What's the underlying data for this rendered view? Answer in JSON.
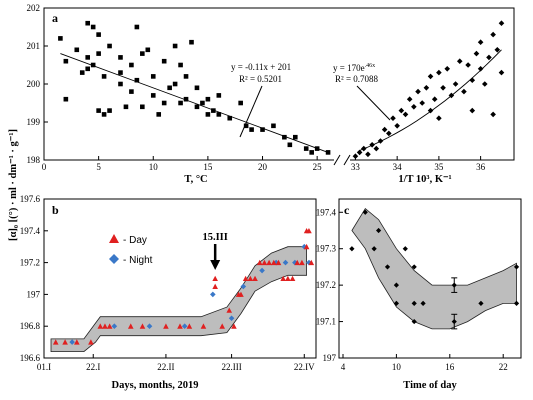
{
  "chart_data": [
    {
      "type": "scatter",
      "letter": "a",
      "xlabel_left": "T, °C",
      "xlabel_right": "1/T 10³, K⁻¹",
      "ylim": [
        198,
        202
      ],
      "y_ticks": [
        "198",
        "199",
        "200",
        "201",
        "202"
      ],
      "left_x_ticks": [
        "0",
        "5",
        "10",
        "15",
        "20",
        "25"
      ],
      "left_xlim": [
        0,
        27
      ],
      "right_x_ticks": [
        "33",
        "34",
        "35",
        "36"
      ],
      "right_xlim": [
        32.75,
        36.8
      ],
      "left_fit": {
        "equation": "y = -0.11x + 201",
        "r2": "R² = 0.5201",
        "x0": 1.5,
        "y0": 200.8,
        "x1": 26,
        "y1": 198.2
      },
      "right_fit": {
        "equation": "y = 170e^(.46x)",
        "eq_main": "y = 170e",
        "eq_sup": ".46x",
        "r2": "R² = 0.7088",
        "x0": 33.1,
        "y0": 198.25,
        "x1": 36.5,
        "y1": 200.9
      },
      "left_points": [
        [
          1.5,
          201.2
        ],
        [
          2,
          200.6
        ],
        [
          2,
          199.6
        ],
        [
          3,
          200.9
        ],
        [
          3.5,
          200.3
        ],
        [
          4,
          201.6
        ],
        [
          4,
          200.7
        ],
        [
          4,
          200.4
        ],
        [
          4.5,
          201.5
        ],
        [
          4.5,
          200.5
        ],
        [
          5,
          201.3
        ],
        [
          5,
          200.8
        ],
        [
          5,
          199.3
        ],
        [
          5.5,
          200.2
        ],
        [
          5.5,
          199.2
        ],
        [
          6,
          199.3
        ],
        [
          6,
          201
        ],
        [
          7,
          200.7
        ],
        [
          7,
          200.3
        ],
        [
          7,
          200
        ],
        [
          7.5,
          199.4
        ],
        [
          8,
          200.5
        ],
        [
          8,
          199.8
        ],
        [
          8.5,
          201.5
        ],
        [
          8.5,
          200.1
        ],
        [
          9,
          199.4
        ],
        [
          9,
          200.8
        ],
        [
          9.5,
          200.9
        ],
        [
          10,
          199.7
        ],
        [
          10,
          200.2
        ],
        [
          10.5,
          199.2
        ],
        [
          11,
          200.6
        ],
        [
          11,
          199.5
        ],
        [
          11.5,
          199.9
        ],
        [
          12,
          201
        ],
        [
          12,
          200
        ],
        [
          12.5,
          199.5
        ],
        [
          12.5,
          200.5
        ],
        [
          13,
          200.2
        ],
        [
          13,
          199.6
        ],
        [
          13.5,
          201.1
        ],
        [
          14,
          199.4
        ],
        [
          14,
          199.9
        ],
        [
          14.5,
          199.5
        ],
        [
          15,
          199.2
        ],
        [
          15,
          199.6
        ],
        [
          15.5,
          199.3
        ],
        [
          16,
          199.7
        ],
        [
          16,
          199.2
        ],
        [
          17,
          199.1
        ],
        [
          18,
          199.5
        ],
        [
          18.5,
          198.9
        ],
        [
          19,
          198.8
        ],
        [
          20,
          198.8
        ],
        [
          21,
          198.9
        ],
        [
          22,
          198.6
        ],
        [
          22.5,
          198.4
        ],
        [
          23,
          198.6
        ],
        [
          24,
          198.3
        ],
        [
          24.5,
          198.2
        ],
        [
          25,
          198.3
        ],
        [
          26,
          198.2
        ]
      ],
      "right_points": [
        [
          33,
          198.1
        ],
        [
          33.1,
          198.2
        ],
        [
          33.2,
          198.3
        ],
        [
          33.3,
          198.15
        ],
        [
          33.4,
          198.4
        ],
        [
          33.5,
          198.3
        ],
        [
          33.6,
          198.5
        ],
        [
          33.7,
          198.8
        ],
        [
          33.8,
          198.7
        ],
        [
          33.9,
          199.1
        ],
        [
          34,
          198.9
        ],
        [
          34.1,
          199.3
        ],
        [
          34.2,
          199.2
        ],
        [
          34.3,
          199.6
        ],
        [
          34.4,
          199.4
        ],
        [
          34.5,
          199.8
        ],
        [
          34.6,
          199.5
        ],
        [
          34.7,
          199.9
        ],
        [
          34.8,
          199.3
        ],
        [
          34.8,
          200.2
        ],
        [
          34.9,
          199.6
        ],
        [
          35,
          200.3
        ],
        [
          35,
          199.1
        ],
        [
          35.1,
          199.9
        ],
        [
          35.2,
          200.4
        ],
        [
          35.3,
          199.7
        ],
        [
          35.4,
          200
        ],
        [
          35.5,
          200.6
        ],
        [
          35.6,
          199.8
        ],
        [
          35.7,
          200.5
        ],
        [
          35.8,
          200.1
        ],
        [
          35.8,
          199.3
        ],
        [
          35.9,
          200.8
        ],
        [
          36,
          200.4
        ],
        [
          36,
          201.1
        ],
        [
          36.1,
          200
        ],
        [
          36.2,
          200.7
        ],
        [
          36.3,
          201.3
        ],
        [
          36.3,
          199.2
        ],
        [
          36.4,
          200.9
        ],
        [
          36.5,
          201.6
        ],
        [
          36.5,
          200.3
        ]
      ]
    },
    {
      "type": "scatter",
      "letter": "b",
      "ylabel": "[α]₀ [(°) · ml · dm⁻¹ · g⁻¹]",
      "xlabel": "Days, months, 2019",
      "ylim": [
        196.6,
        197.6
      ],
      "y_ticks": [
        "196.6",
        "196.8",
        "197",
        "197.2",
        "197.4",
        "197.6"
      ],
      "x_ticks": [
        "01.I",
        "22.I",
        "22.II",
        "22.III",
        "22.IV"
      ],
      "x_tick_days": [
        0,
        21,
        52,
        80,
        111
      ],
      "xlim": [
        0,
        116
      ],
      "legend": [
        {
          "label": "- Day",
          "color": "#e02020"
        },
        {
          "label": "- Night",
          "color": "#3a78c8"
        }
      ],
      "arrow_label": "15.III",
      "arrow_day": 73,
      "band_upper": [
        [
          3,
          196.72
        ],
        [
          17,
          196.72
        ],
        [
          22,
          196.82
        ],
        [
          24,
          196.86
        ],
        [
          67,
          196.86
        ],
        [
          78,
          196.92
        ],
        [
          84,
          197.04
        ],
        [
          90,
          197.18
        ],
        [
          97,
          197.26
        ],
        [
          104,
          197.3
        ],
        [
          112,
          197.3
        ]
      ],
      "band_lower": [
        [
          3,
          196.64
        ],
        [
          17,
          196.64
        ],
        [
          22,
          196.7
        ],
        [
          24,
          196.74
        ],
        [
          67,
          196.74
        ],
        [
          78,
          196.76
        ],
        [
          84,
          196.88
        ],
        [
          90,
          197.02
        ],
        [
          97,
          197.08
        ],
        [
          104,
          197.12
        ],
        [
          112,
          197.12
        ]
      ],
      "day_points": [
        [
          5,
          196.7
        ],
        [
          9,
          196.7
        ],
        [
          14,
          196.7
        ],
        [
          20,
          196.7
        ],
        [
          24,
          196.8
        ],
        [
          26,
          196.8
        ],
        [
          28,
          196.8
        ],
        [
          37,
          196.8
        ],
        [
          42,
          196.8
        ],
        [
          52,
          196.8
        ],
        [
          58,
          196.8
        ],
        [
          62,
          196.8
        ],
        [
          68,
          196.8
        ],
        [
          73,
          197.1
        ],
        [
          73,
          197.05
        ],
        [
          76,
          196.8
        ],
        [
          79,
          196.9
        ],
        [
          81,
          196.8
        ],
        [
          83,
          197
        ],
        [
          84,
          197
        ],
        [
          86,
          197.1
        ],
        [
          88,
          197.1
        ],
        [
          90,
          197.1
        ],
        [
          92,
          197.2
        ],
        [
          94,
          197.2
        ],
        [
          96,
          197.2
        ],
        [
          98,
          197.2
        ],
        [
          100,
          197.2
        ],
        [
          102,
          197.1
        ],
        [
          104,
          197.1
        ],
        [
          106,
          197.1
        ],
        [
          108,
          197.2
        ],
        [
          110,
          197.2
        ],
        [
          112,
          197.3
        ],
        [
          112,
          197.4
        ],
        [
          113,
          197.4
        ],
        [
          114,
          197.2
        ]
      ],
      "night_points": [
        [
          12,
          196.7
        ],
        [
          30,
          196.8
        ],
        [
          45,
          196.8
        ],
        [
          60,
          196.8
        ],
        [
          72,
          197
        ],
        [
          80,
          196.85
        ],
        [
          85,
          197.05
        ],
        [
          93,
          197.15
        ],
        [
          99,
          197.2
        ],
        [
          103,
          197.2
        ],
        [
          107,
          197.2
        ],
        [
          111,
          197.3
        ],
        [
          113,
          197.2
        ]
      ]
    },
    {
      "type": "scatter",
      "letter": "c",
      "xlabel": "Time of day",
      "ylim": [
        197,
        197.42
      ],
      "y_ticks": [
        "197",
        "197.1",
        "197.2",
        "197.3",
        "197.4"
      ],
      "x_ticks": [
        "4",
        "10",
        "16",
        "22"
      ],
      "x_tick_values": [
        4,
        10,
        16,
        22
      ],
      "xlim": [
        4,
        24
      ],
      "band_upper": [
        [
          5,
          197.35
        ],
        [
          6.5,
          197.41
        ],
        [
          8,
          197.38
        ],
        [
          10,
          197.3
        ],
        [
          12,
          197.24
        ],
        [
          14,
          197.2
        ],
        [
          16,
          197.2
        ],
        [
          18,
          197.2
        ],
        [
          20,
          197.22
        ],
        [
          22,
          197.24
        ],
        [
          23.5,
          197.26
        ]
      ],
      "band_lower": [
        [
          5,
          197.35
        ],
        [
          6.5,
          197.3
        ],
        [
          8,
          197.22
        ],
        [
          10,
          197.14
        ],
        [
          12,
          197.1
        ],
        [
          14,
          197.08
        ],
        [
          16,
          197.08
        ],
        [
          18,
          197.1
        ],
        [
          20,
          197.13
        ],
        [
          22,
          197.15
        ],
        [
          23.5,
          197.15
        ]
      ],
      "points": [
        [
          5,
          197.3
        ],
        [
          6.5,
          197.4
        ],
        [
          7.5,
          197.3
        ],
        [
          8,
          197.35
        ],
        [
          9,
          197.25
        ],
        [
          10,
          197.2
        ],
        [
          10,
          197.15
        ],
        [
          11,
          197.3
        ],
        [
          12,
          197.1
        ],
        [
          12,
          197.15
        ],
        [
          12,
          197.25
        ],
        [
          13,
          197.15
        ],
        [
          16.5,
          197.2
        ],
        [
          16.5,
          197.1
        ],
        [
          19.5,
          197.15
        ],
        [
          23.5,
          197.25
        ],
        [
          23.5,
          197.15
        ]
      ],
      "error_bars": [
        [
          16.5,
          197.2,
          0.02
        ],
        [
          16.5,
          197.1,
          0.02
        ]
      ]
    }
  ]
}
